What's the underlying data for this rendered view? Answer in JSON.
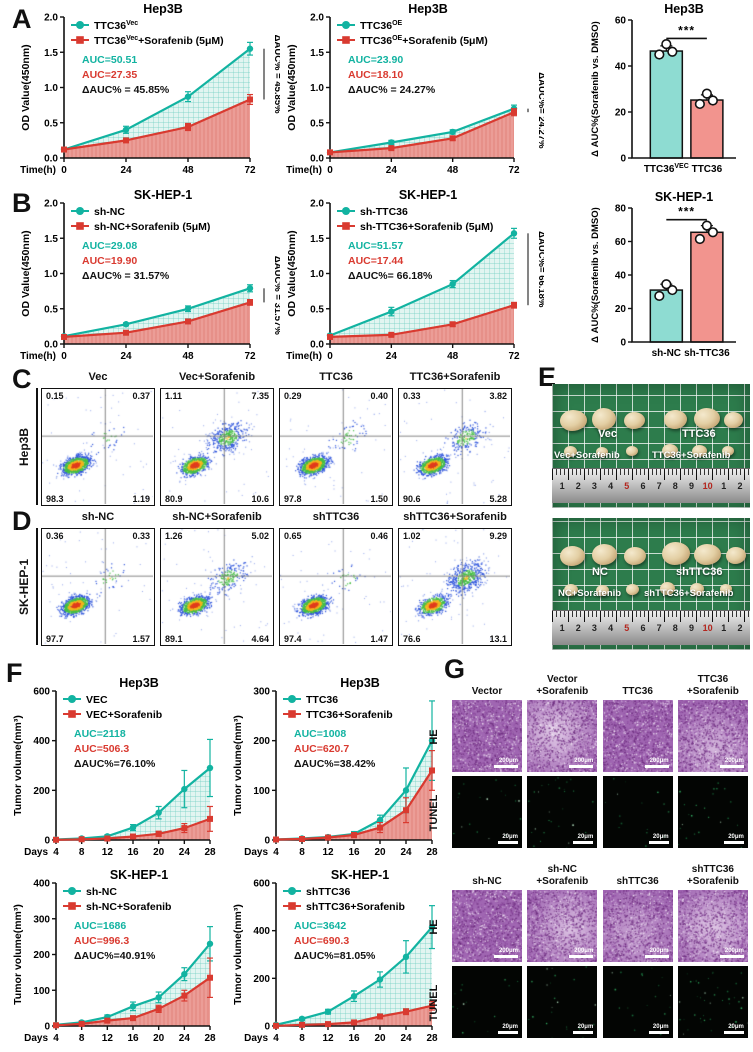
{
  "panels": {
    "a": "A",
    "b": "B",
    "c": "C",
    "d": "D",
    "e": "E",
    "f": "F",
    "g": "G"
  },
  "colors": {
    "teal": "#12b3a1",
    "red": "#d93a30",
    "tealHatchBg": "#e2f5f1",
    "tealHatchLine": "#6fcfc2",
    "redFillBg": "#eb9d97",
    "redFillLine": "#e2837b",
    "barTeal": "#8edcd2",
    "barPink": "#f2948e"
  },
  "chart_data": [
    {
      "id": "a_left",
      "type": "line",
      "title": "Hep3B",
      "xlabel": "Time(h)",
      "ylabel": "OD Value(450nm)",
      "x": [
        0,
        24,
        48,
        72
      ],
      "ylim": [
        0,
        2
      ],
      "yticks": [
        "0.0",
        "0.5",
        "1.0",
        "1.5",
        "2.0"
      ],
      "series": [
        {
          "base": "TTC36",
          "sup": "Vec",
          "rest": "",
          "color": "teal",
          "marker": "circle",
          "values": [
            0.12,
            0.4,
            0.87,
            1.55
          ],
          "err": [
            0.02,
            0.05,
            0.07,
            0.09
          ]
        },
        {
          "base": "TTC36",
          "sup": "Vec",
          "rest": "+Sorafenib (5μM)",
          "color": "red",
          "marker": "square",
          "values": [
            0.12,
            0.25,
            0.44,
            0.83
          ],
          "err": [
            0.02,
            0.03,
            0.05,
            0.07
          ]
        }
      ],
      "auc_teal": "AUC=50.51",
      "auc_red": "AUC=27.35",
      "dauc": "ΔAUC% = 45.85%",
      "side_label": "ΔAUC% = 45.85%"
    },
    {
      "id": "a_mid",
      "type": "line",
      "title": "Hep3B",
      "xlabel": "Time(h)",
      "ylabel": "OD Value(450nm)",
      "x": [
        0,
        24,
        48,
        72
      ],
      "ylim": [
        0,
        2
      ],
      "yticks": [
        "0.0",
        "0.5",
        "1.0",
        "1.5",
        "2.0"
      ],
      "series": [
        {
          "base": "TTC36",
          "sup": "OE",
          "rest": "",
          "color": "teal",
          "marker": "circle",
          "values": [
            0.08,
            0.22,
            0.37,
            0.7
          ],
          "err": [
            0.01,
            0.03,
            0.03,
            0.05
          ]
        },
        {
          "base": "TTC36",
          "sup": "OE",
          "rest": "+Sorafenib (5μM)",
          "color": "red",
          "marker": "square",
          "values": [
            0.08,
            0.14,
            0.28,
            0.65
          ],
          "err": [
            0.01,
            0.02,
            0.03,
            0.05
          ]
        }
      ],
      "auc_teal": "AUC=23.90",
      "auc_red": "AUC=18.10",
      "dauc": "ΔAUC% = 24.27%",
      "side_label": "ΔAUC%= 24.27%"
    },
    {
      "id": "a_bar",
      "type": "bar",
      "title": "Hep3B",
      "ylabel": "Δ AUC%(Sorafenib vs. DMSO)",
      "ylim": [
        0,
        60
      ],
      "yticks": [
        "0",
        "20",
        "40",
        "60"
      ],
      "categories": [
        {
          "base": "TTC36",
          "sup": "VEC"
        },
        {
          "base": "TTC36",
          "sup": ""
        }
      ],
      "values": [
        46.5,
        25.2
      ],
      "dots": [
        [
          45,
          46.2,
          49.5
        ],
        [
          23.5,
          25,
          28
        ]
      ],
      "sig": "***",
      "sig_y": 52,
      "colors": [
        "barTeal",
        "barPink"
      ]
    },
    {
      "id": "b_left",
      "type": "line",
      "title": "SK-HEP-1",
      "xlabel": "Time(h)",
      "ylabel": "OD Value(450nm)",
      "x": [
        0,
        24,
        48,
        72
      ],
      "ylim": [
        0,
        2
      ],
      "yticks": [
        "0.0",
        "0.5",
        "1.0",
        "1.5",
        "2.0"
      ],
      "series": [
        {
          "base": "sh-NC",
          "sup": "",
          "rest": "",
          "color": "teal",
          "marker": "circle",
          "values": [
            0.11,
            0.28,
            0.5,
            0.79
          ],
          "err": [
            0.02,
            0.02,
            0.04,
            0.05
          ]
        },
        {
          "base": "sh-NC+Sorafenib (5μM)",
          "sup": "",
          "rest": "",
          "color": "red",
          "marker": "square",
          "values": [
            0.1,
            0.16,
            0.32,
            0.59
          ],
          "err": [
            0.02,
            0.02,
            0.03,
            0.04
          ]
        }
      ],
      "auc_teal": "AUC=29.08",
      "auc_red": "AUC=19.90",
      "dauc": "ΔAUC% = 31.57%",
      "side_label": "ΔAUC% = 31.57%"
    },
    {
      "id": "b_mid",
      "type": "line",
      "title": "SK-HEP-1",
      "xlabel": "Time(h)",
      "ylabel": "OD Value(450nm)",
      "x": [
        0,
        24,
        48,
        72
      ],
      "ylim": [
        0,
        2
      ],
      "yticks": [
        "0.0",
        "0.5",
        "1.0",
        "1.5",
        "2.0"
      ],
      "series": [
        {
          "base": "sh-TTC36",
          "sup": "",
          "rest": "",
          "color": "teal",
          "marker": "circle",
          "values": [
            0.12,
            0.46,
            0.85,
            1.57
          ],
          "err": [
            0.02,
            0.06,
            0.05,
            0.07
          ]
        },
        {
          "base": "sh-TTC36+Sorafenib (5μM)",
          "sup": "",
          "rest": "",
          "color": "red",
          "marker": "square",
          "values": [
            0.1,
            0.13,
            0.28,
            0.55
          ],
          "err": [
            0.01,
            0.02,
            0.03,
            0.04
          ]
        }
      ],
      "auc_teal": "AUC=51.57",
      "auc_red": "AUC=17.44",
      "dauc": "ΔAUC%= 66.18%",
      "side_label": "ΔAUC%= 66.18%"
    },
    {
      "id": "b_bar",
      "type": "bar",
      "title": "SK-HEP-1",
      "ylabel": "Δ AUC%(Sorafenib vs. DMSO)",
      "ylim": [
        0,
        80
      ],
      "yticks": [
        "0",
        "20",
        "40",
        "60",
        "80"
      ],
      "categories": [
        {
          "base": "sh-NC",
          "sup": ""
        },
        {
          "base": "sh-TTC36",
          "sup": ""
        }
      ],
      "values": [
        31,
        65.5
      ],
      "dots": [
        [
          27.5,
          31,
          34.5
        ],
        [
          61.5,
          65.5,
          69.5
        ]
      ],
      "sig": "***",
      "sig_y": 73,
      "colors": [
        "barTeal",
        "barPink"
      ]
    },
    {
      "id": "f1",
      "type": "line",
      "title": "Hep3B",
      "xlabel": "Days",
      "ylabel": "Tumor volume(mm³)",
      "x": [
        4,
        8,
        12,
        16,
        20,
        24,
        28
      ],
      "ylim": [
        0,
        600
      ],
      "yticks": [
        "0",
        "200",
        "400",
        "600"
      ],
      "series": [
        {
          "base": "VEC",
          "sup": "",
          "rest": "",
          "color": "teal",
          "marker": "circle",
          "values": [
            2,
            6,
            15,
            50,
            110,
            205,
            290
          ],
          "err": [
            2,
            3,
            6,
            12,
            25,
            75,
            115
          ]
        },
        {
          "base": "VEC+Sorafenib",
          "sup": "",
          "rest": "",
          "color": "red",
          "marker": "square",
          "values": [
            1,
            3,
            6,
            14,
            25,
            48,
            85
          ],
          "err": [
            1,
            2,
            3,
            6,
            10,
            18,
            50
          ]
        }
      ],
      "auc_teal": "AUC=2118",
      "auc_red": "AUC=506.3",
      "dauc": "ΔAUC%=76.10%"
    },
    {
      "id": "f2",
      "type": "line",
      "title": "Hep3B",
      "xlabel": "Days",
      "ylabel": "Tumor volume(mm³)",
      "x": [
        4,
        8,
        12,
        16,
        20,
        24,
        28
      ],
      "ylim": [
        0,
        300
      ],
      "yticks": [
        "0",
        "100",
        "200",
        "300"
      ],
      "series": [
        {
          "base": "TTC36",
          "sup": "",
          "rest": "",
          "color": "teal",
          "marker": "circle",
          "values": [
            1,
            3,
            6,
            12,
            40,
            100,
            200
          ],
          "err": [
            1,
            2,
            3,
            5,
            10,
            45,
            80
          ]
        },
        {
          "base": "TTC36+Sorafenib",
          "sup": "",
          "rest": "",
          "color": "red",
          "marker": "square",
          "values": [
            1,
            2,
            5,
            10,
            25,
            60,
            140
          ],
          "err": [
            1,
            1,
            3,
            5,
            10,
            25,
            40
          ]
        }
      ],
      "auc_teal": "AUC=1008",
      "auc_red": "AUC=620.7",
      "dauc": "ΔAUC%=38.42%"
    },
    {
      "id": "f3",
      "type": "line",
      "title": "SK-HEP-1",
      "xlabel": "Days",
      "ylabel": "Tumor volume(mm³)",
      "x": [
        4,
        8,
        12,
        16,
        20,
        24,
        28
      ],
      "ylim": [
        0,
        400
      ],
      "yticks": [
        "0",
        "100",
        "200",
        "300",
        "400"
      ],
      "series": [
        {
          "base": "sh-NC",
          "sup": "",
          "rest": "",
          "color": "teal",
          "marker": "circle",
          "values": [
            3,
            10,
            25,
            55,
            80,
            145,
            230
          ],
          "err": [
            2,
            4,
            6,
            12,
            15,
            18,
            48
          ]
        },
        {
          "base": "sh-NC+Sorafenib",
          "sup": "",
          "rest": "",
          "color": "red",
          "marker": "square",
          "values": [
            2,
            6,
            15,
            22,
            48,
            85,
            135
          ],
          "err": [
            1,
            3,
            5,
            6,
            10,
            15,
            55
          ]
        }
      ],
      "auc_teal": "AUC=1686",
      "auc_red": "AUC=996.3",
      "dauc": "ΔAUC%=40.91%"
    },
    {
      "id": "f4",
      "type": "line",
      "title": "SK-HEP-1",
      "xlabel": "Days",
      "ylabel": "Tumor volume(mm³)",
      "x": [
        4,
        8,
        12,
        16,
        20,
        24,
        28
      ],
      "ylim": [
        0,
        600
      ],
      "yticks": [
        "0",
        "200",
        "400",
        "600"
      ],
      "series": [
        {
          "base": "shTTC36",
          "sup": "",
          "rest": "",
          "color": "teal",
          "marker": "circle",
          "values": [
            5,
            30,
            60,
            125,
            195,
            290,
            415
          ],
          "err": [
            3,
            6,
            10,
            22,
            32,
            68,
            90
          ]
        },
        {
          "base": "shTTC36+Sorafenib",
          "sup": "",
          "rest": "",
          "color": "red",
          "marker": "square",
          "values": [
            1,
            5,
            8,
            15,
            40,
            60,
            85
          ],
          "err": [
            1,
            2,
            3,
            5,
            8,
            12,
            18
          ]
        }
      ],
      "auc_teal": "AUC=3642",
      "auc_red": "AUC=690.3",
      "dauc": "ΔAUC%=81.05%"
    }
  ],
  "flow_c": {
    "row_label": "Hep3B",
    "plots": [
      {
        "title": "Vec",
        "ul": "0.15",
        "ur": "0.37",
        "ll": "98.3",
        "lr": "1.19"
      },
      {
        "title": "Vec+Sorafenib",
        "ul": "1.11",
        "ur": "7.35",
        "ll": "80.9",
        "lr": "10.6"
      },
      {
        "title": "TTC36",
        "ul": "0.29",
        "ur": "0.40",
        "ll": "97.8",
        "lr": "1.50"
      },
      {
        "title": "TTC36+Sorafenib",
        "ul": "0.33",
        "ur": "3.82",
        "ll": "90.6",
        "lr": "5.28"
      }
    ]
  },
  "flow_d": {
    "row_label": "SK-HEP-1",
    "plots": [
      {
        "title": "sh-NC",
        "ul": "0.36",
        "ur": "0.33",
        "ll": "97.7",
        "lr": "1.57"
      },
      {
        "title": "sh-NC+Sorafenib",
        "ul": "1.26",
        "ur": "5.02",
        "ll": "89.1",
        "lr": "4.64"
      },
      {
        "title": "shTTC36",
        "ul": "0.65",
        "ur": "0.46",
        "ll": "97.4",
        "lr": "1.47"
      },
      {
        "title": "shTTC36+Sorafenib",
        "ul": "1.02",
        "ur": "9.29",
        "ll": "76.6",
        "lr": "13.1"
      }
    ]
  },
  "photos": {
    "top": {
      "label_row1_left": "Vec",
      "label_row1_right": "TTC36",
      "label_row2_left": "Vec+Sorafenib",
      "label_row2_right": "TTC36+Sorafenib"
    },
    "bottom": {
      "label_row1_left": "NC",
      "label_row1_right": "shTTC36",
      "label_row2_left": "NC+Sorafenib",
      "label_row2_right": "shTTC36+Sorafenib"
    },
    "ruler_numbers": [
      "1",
      "2",
      "3",
      "4",
      "5",
      "6",
      "7",
      "8",
      "9",
      "10",
      "1",
      "2"
    ],
    "ruler_red_indexes": [
      4,
      9
    ]
  },
  "histology": {
    "row_he": "HE",
    "row_tunel": "TUNEL",
    "scale_he": "200μm",
    "scale_tunel": "20μm",
    "block1_columns": [
      "Vector",
      "Vector\n+Sorafenib",
      "TTC36",
      "TTC36\n+Sorafenib"
    ],
    "block2_columns": [
      "sh-NC",
      "sh-NC\n+Sorafenib",
      "shTTC36",
      "shTTC36\n+Sorafenib"
    ]
  }
}
